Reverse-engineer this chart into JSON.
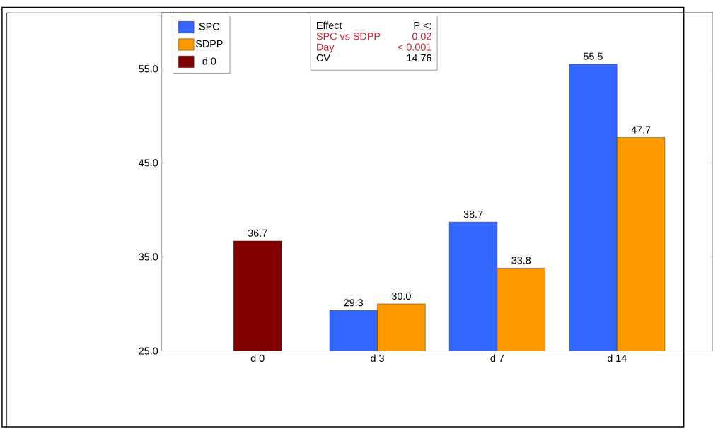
{
  "chart_data": {
    "type": "bar",
    "categories": [
      "d 0",
      "d 3",
      "d 7",
      "d 14"
    ],
    "series": [
      {
        "name": "SPC",
        "color": "#3366ff",
        "values": [
          null,
          29.3,
          38.7,
          55.5
        ],
        "value_labels": [
          null,
          "29.3",
          "38.7",
          "55.5"
        ]
      },
      {
        "name": "SDPP",
        "color": "#ff9900",
        "values": [
          null,
          30.0,
          33.8,
          47.7
        ],
        "value_labels": [
          null,
          "30.0",
          "33.8",
          "47.7"
        ]
      },
      {
        "name": "d 0",
        "color": "#800000",
        "values": [
          36.7,
          null,
          null,
          null
        ],
        "value_labels": [
          "36.7",
          null,
          null,
          null
        ]
      }
    ],
    "ylim": [
      25,
      61
    ],
    "yticks": [
      {
        "value": 25,
        "label": "25.0"
      },
      {
        "value": 35,
        "label": "35.0"
      },
      {
        "value": 45,
        "label": "45.0"
      },
      {
        "value": 55,
        "label": "55.0"
      }
    ],
    "legend": "top left",
    "annotations": [
      "Effect",
      "P <:",
      "SPC vs SDPP",
      "0.02",
      "Day",
      "< 0.001",
      "CV",
      "14.76"
    ]
  }
}
